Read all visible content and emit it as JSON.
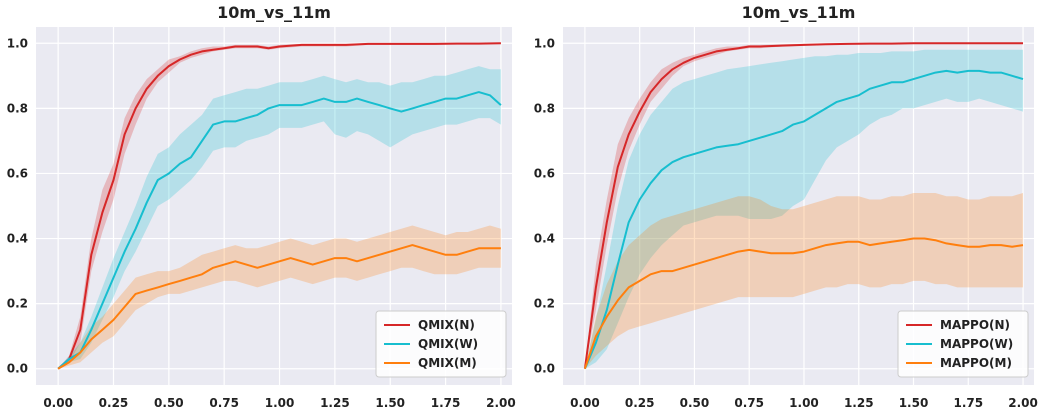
{
  "chart_data": [
    {
      "type": "line",
      "title": "10m_vs_11m",
      "xlabel": "",
      "ylabel": "",
      "xlim": [
        -0.1,
        2.05
      ],
      "ylim": [
        -0.05,
        1.05
      ],
      "xticks": [
        "0.00",
        "0.25",
        "0.50",
        "0.75",
        "1.00",
        "1.25",
        "1.50",
        "1.75",
        "2.00"
      ],
      "yticks": [
        "0.0",
        "0.2",
        "0.4",
        "0.6",
        "0.8",
        "1.0"
      ],
      "grid": true,
      "legend_position": "lower-right",
      "series": [
        {
          "name": "QMIX(N)",
          "color": "#d62728",
          "x": [
            0.0,
            0.05,
            0.1,
            0.15,
            0.2,
            0.25,
            0.3,
            0.35,
            0.4,
            0.45,
            0.5,
            0.55,
            0.6,
            0.65,
            0.7,
            0.75,
            0.8,
            0.85,
            0.9,
            0.95,
            1.0,
            1.1,
            1.2,
            1.3,
            1.4,
            1.5,
            1.6,
            1.7,
            1.8,
            1.9,
            2.0
          ],
          "values": [
            0.0,
            0.03,
            0.12,
            0.35,
            0.48,
            0.58,
            0.72,
            0.8,
            0.86,
            0.9,
            0.93,
            0.95,
            0.965,
            0.975,
            0.98,
            0.985,
            0.99,
            0.99,
            0.99,
            0.985,
            0.99,
            0.995,
            0.995,
            0.995,
            0.998,
            0.998,
            0.998,
            0.998,
            0.999,
            0.999,
            1.0
          ],
          "lower": [
            0.0,
            0.02,
            0.08,
            0.3,
            0.42,
            0.52,
            0.66,
            0.75,
            0.83,
            0.88,
            0.91,
            0.94,
            0.955,
            0.965,
            0.975,
            0.98,
            0.985,
            0.985,
            0.985,
            0.98,
            0.985,
            0.99,
            0.99,
            0.99,
            0.995,
            0.995,
            0.995,
            0.995,
            0.997,
            0.997,
            0.998
          ],
          "upper": [
            0.0,
            0.04,
            0.16,
            0.4,
            0.55,
            0.63,
            0.77,
            0.84,
            0.89,
            0.92,
            0.95,
            0.96,
            0.975,
            0.985,
            0.99,
            0.99,
            0.995,
            0.995,
            0.995,
            0.99,
            0.995,
            0.998,
            0.998,
            0.998,
            1.0,
            1.0,
            1.0,
            1.0,
            1.0,
            1.0,
            1.0
          ]
        },
        {
          "name": "QMIX(W)",
          "color": "#17becf",
          "x": [
            0.0,
            0.05,
            0.1,
            0.15,
            0.2,
            0.25,
            0.3,
            0.35,
            0.4,
            0.45,
            0.5,
            0.55,
            0.6,
            0.65,
            0.7,
            0.75,
            0.8,
            0.85,
            0.9,
            0.95,
            1.0,
            1.05,
            1.1,
            1.15,
            1.2,
            1.25,
            1.3,
            1.35,
            1.4,
            1.45,
            1.5,
            1.55,
            1.6,
            1.65,
            1.7,
            1.75,
            1.8,
            1.85,
            1.9,
            1.95,
            2.0
          ],
          "values": [
            0.0,
            0.03,
            0.05,
            0.12,
            0.2,
            0.28,
            0.36,
            0.43,
            0.51,
            0.58,
            0.6,
            0.63,
            0.65,
            0.7,
            0.75,
            0.76,
            0.76,
            0.77,
            0.78,
            0.8,
            0.81,
            0.81,
            0.81,
            0.82,
            0.83,
            0.82,
            0.82,
            0.83,
            0.82,
            0.81,
            0.8,
            0.79,
            0.8,
            0.81,
            0.82,
            0.83,
            0.83,
            0.84,
            0.85,
            0.84,
            0.81
          ],
          "lower": [
            0.0,
            0.02,
            0.03,
            0.08,
            0.15,
            0.22,
            0.3,
            0.36,
            0.43,
            0.5,
            0.52,
            0.55,
            0.58,
            0.62,
            0.67,
            0.68,
            0.68,
            0.7,
            0.71,
            0.72,
            0.74,
            0.74,
            0.74,
            0.75,
            0.76,
            0.72,
            0.71,
            0.73,
            0.72,
            0.7,
            0.68,
            0.7,
            0.72,
            0.73,
            0.74,
            0.75,
            0.75,
            0.76,
            0.77,
            0.77,
            0.75
          ],
          "upper": [
            0.0,
            0.04,
            0.08,
            0.16,
            0.25,
            0.34,
            0.42,
            0.5,
            0.59,
            0.66,
            0.68,
            0.72,
            0.75,
            0.78,
            0.83,
            0.84,
            0.85,
            0.86,
            0.86,
            0.87,
            0.88,
            0.88,
            0.88,
            0.89,
            0.9,
            0.89,
            0.88,
            0.89,
            0.88,
            0.88,
            0.87,
            0.88,
            0.88,
            0.89,
            0.9,
            0.9,
            0.91,
            0.92,
            0.93,
            0.92,
            0.92
          ]
        },
        {
          "name": "QMIX(M)",
          "color": "#ff7f0e",
          "x": [
            0.0,
            0.05,
            0.1,
            0.15,
            0.2,
            0.25,
            0.3,
            0.35,
            0.4,
            0.45,
            0.5,
            0.55,
            0.6,
            0.65,
            0.7,
            0.75,
            0.8,
            0.85,
            0.9,
            0.95,
            1.0,
            1.05,
            1.1,
            1.15,
            1.2,
            1.25,
            1.3,
            1.35,
            1.4,
            1.45,
            1.5,
            1.55,
            1.6,
            1.65,
            1.7,
            1.75,
            1.8,
            1.85,
            1.9,
            1.95,
            2.0
          ],
          "values": [
            0.0,
            0.02,
            0.05,
            0.09,
            0.12,
            0.15,
            0.19,
            0.23,
            0.24,
            0.25,
            0.26,
            0.27,
            0.28,
            0.29,
            0.31,
            0.32,
            0.33,
            0.32,
            0.31,
            0.32,
            0.33,
            0.34,
            0.33,
            0.32,
            0.33,
            0.34,
            0.34,
            0.33,
            0.34,
            0.35,
            0.36,
            0.37,
            0.38,
            0.37,
            0.36,
            0.35,
            0.35,
            0.36,
            0.37,
            0.37,
            0.37
          ],
          "lower": [
            0.0,
            0.01,
            0.02,
            0.05,
            0.08,
            0.1,
            0.14,
            0.18,
            0.2,
            0.22,
            0.23,
            0.23,
            0.24,
            0.25,
            0.26,
            0.27,
            0.27,
            0.26,
            0.25,
            0.26,
            0.27,
            0.28,
            0.27,
            0.26,
            0.27,
            0.28,
            0.28,
            0.27,
            0.28,
            0.29,
            0.3,
            0.31,
            0.31,
            0.3,
            0.29,
            0.29,
            0.29,
            0.3,
            0.31,
            0.31,
            0.31
          ],
          "upper": [
            0.0,
            0.03,
            0.08,
            0.13,
            0.16,
            0.2,
            0.24,
            0.28,
            0.29,
            0.3,
            0.3,
            0.31,
            0.33,
            0.35,
            0.36,
            0.37,
            0.38,
            0.37,
            0.37,
            0.38,
            0.39,
            0.4,
            0.39,
            0.38,
            0.39,
            0.4,
            0.4,
            0.39,
            0.4,
            0.41,
            0.42,
            0.43,
            0.44,
            0.43,
            0.42,
            0.41,
            0.42,
            0.42,
            0.43,
            0.44,
            0.43
          ]
        }
      ]
    },
    {
      "type": "line",
      "title": "10m_vs_11m",
      "xlabel": "",
      "ylabel": "",
      "xlim": [
        -0.1,
        2.05
      ],
      "ylim": [
        -0.05,
        1.05
      ],
      "xticks": [
        "0.00",
        "0.25",
        "0.50",
        "0.75",
        "1.00",
        "1.25",
        "1.50",
        "1.75",
        "2.00"
      ],
      "yticks": [
        "0.0",
        "0.2",
        "0.4",
        "0.6",
        "0.8",
        "1.0"
      ],
      "grid": true,
      "legend_position": "lower-right",
      "series": [
        {
          "name": "MAPPO(N)",
          "color": "#d62728",
          "x": [
            0.0,
            0.05,
            0.1,
            0.15,
            0.2,
            0.25,
            0.3,
            0.35,
            0.4,
            0.45,
            0.5,
            0.55,
            0.6,
            0.65,
            0.7,
            0.75,
            0.8,
            0.9,
            1.0,
            1.1,
            1.2,
            1.3,
            1.4,
            1.5,
            1.6,
            1.7,
            1.8,
            1.9,
            2.0
          ],
          "values": [
            0.0,
            0.25,
            0.45,
            0.62,
            0.72,
            0.79,
            0.85,
            0.89,
            0.92,
            0.94,
            0.955,
            0.965,
            0.975,
            0.98,
            0.985,
            0.99,
            0.99,
            0.993,
            0.995,
            0.997,
            0.998,
            0.999,
            0.999,
            1.0,
            1.0,
            1.0,
            1.0,
            1.0,
            1.0
          ],
          "lower": [
            0.0,
            0.18,
            0.38,
            0.55,
            0.67,
            0.75,
            0.82,
            0.86,
            0.9,
            0.93,
            0.945,
            0.955,
            0.965,
            0.975,
            0.98,
            0.985,
            0.985,
            0.99,
            0.993,
            0.995,
            0.997,
            0.998,
            0.998,
            0.999,
            0.999,
            0.999,
            0.999,
            0.999,
            0.999
          ],
          "upper": [
            0.0,
            0.32,
            0.52,
            0.69,
            0.77,
            0.83,
            0.88,
            0.92,
            0.94,
            0.955,
            0.965,
            0.975,
            0.985,
            0.99,
            0.99,
            0.995,
            0.995,
            0.997,
            0.998,
            0.999,
            1.0,
            1.0,
            1.0,
            1.0,
            1.0,
            1.0,
            1.0,
            1.0,
            1.0
          ]
        },
        {
          "name": "MAPPO(W)",
          "color": "#17becf",
          "x": [
            0.0,
            0.05,
            0.1,
            0.15,
            0.2,
            0.25,
            0.3,
            0.35,
            0.4,
            0.45,
            0.5,
            0.55,
            0.6,
            0.65,
            0.7,
            0.75,
            0.8,
            0.85,
            0.9,
            0.95,
            1.0,
            1.05,
            1.1,
            1.15,
            1.2,
            1.25,
            1.3,
            1.35,
            1.4,
            1.45,
            1.5,
            1.55,
            1.6,
            1.65,
            1.7,
            1.75,
            1.8,
            1.85,
            1.9,
            1.95,
            2.0
          ],
          "values": [
            0.0,
            0.08,
            0.18,
            0.32,
            0.45,
            0.52,
            0.57,
            0.61,
            0.635,
            0.65,
            0.66,
            0.67,
            0.68,
            0.685,
            0.69,
            0.7,
            0.71,
            0.72,
            0.73,
            0.75,
            0.76,
            0.78,
            0.8,
            0.82,
            0.83,
            0.84,
            0.86,
            0.87,
            0.88,
            0.88,
            0.89,
            0.9,
            0.91,
            0.915,
            0.91,
            0.915,
            0.915,
            0.91,
            0.91,
            0.9,
            0.89
          ],
          "lower": [
            0.0,
            0.02,
            0.06,
            0.14,
            0.22,
            0.29,
            0.34,
            0.38,
            0.41,
            0.44,
            0.45,
            0.46,
            0.47,
            0.47,
            0.47,
            0.46,
            0.46,
            0.46,
            0.47,
            0.5,
            0.52,
            0.58,
            0.64,
            0.68,
            0.7,
            0.72,
            0.75,
            0.77,
            0.78,
            0.8,
            0.8,
            0.81,
            0.82,
            0.83,
            0.82,
            0.82,
            0.83,
            0.82,
            0.81,
            0.8,
            0.79
          ],
          "upper": [
            0.0,
            0.15,
            0.32,
            0.5,
            0.64,
            0.72,
            0.78,
            0.82,
            0.86,
            0.88,
            0.89,
            0.9,
            0.91,
            0.92,
            0.925,
            0.93,
            0.935,
            0.94,
            0.945,
            0.95,
            0.955,
            0.96,
            0.96,
            0.965,
            0.965,
            0.97,
            0.97,
            0.97,
            0.975,
            0.975,
            0.975,
            0.98,
            0.98,
            0.98,
            0.98,
            0.98,
            0.98,
            0.98,
            0.98,
            0.98,
            0.98
          ]
        },
        {
          "name": "MAPPO(M)",
          "color": "#ff7f0e",
          "x": [
            0.0,
            0.05,
            0.1,
            0.15,
            0.2,
            0.25,
            0.3,
            0.35,
            0.4,
            0.45,
            0.5,
            0.55,
            0.6,
            0.65,
            0.7,
            0.75,
            0.8,
            0.85,
            0.9,
            0.95,
            1.0,
            1.05,
            1.1,
            1.15,
            1.2,
            1.25,
            1.3,
            1.35,
            1.4,
            1.45,
            1.5,
            1.55,
            1.6,
            1.65,
            1.7,
            1.75,
            1.8,
            1.85,
            1.9,
            1.95,
            2.0
          ],
          "values": [
            0.0,
            0.1,
            0.16,
            0.21,
            0.25,
            0.27,
            0.29,
            0.3,
            0.3,
            0.31,
            0.32,
            0.33,
            0.34,
            0.35,
            0.36,
            0.365,
            0.36,
            0.355,
            0.355,
            0.355,
            0.36,
            0.37,
            0.38,
            0.385,
            0.39,
            0.39,
            0.38,
            0.385,
            0.39,
            0.395,
            0.4,
            0.4,
            0.395,
            0.385,
            0.38,
            0.375,
            0.375,
            0.38,
            0.38,
            0.375,
            0.38
          ],
          "lower": [
            0.0,
            0.04,
            0.07,
            0.1,
            0.12,
            0.13,
            0.14,
            0.15,
            0.16,
            0.17,
            0.18,
            0.19,
            0.2,
            0.21,
            0.22,
            0.22,
            0.22,
            0.22,
            0.22,
            0.22,
            0.23,
            0.24,
            0.25,
            0.25,
            0.26,
            0.26,
            0.25,
            0.25,
            0.26,
            0.26,
            0.27,
            0.27,
            0.26,
            0.26,
            0.25,
            0.25,
            0.25,
            0.25,
            0.25,
            0.25,
            0.25
          ],
          "upper": [
            0.0,
            0.16,
            0.26,
            0.33,
            0.38,
            0.41,
            0.44,
            0.46,
            0.47,
            0.48,
            0.49,
            0.5,
            0.51,
            0.52,
            0.53,
            0.53,
            0.52,
            0.5,
            0.49,
            0.49,
            0.5,
            0.51,
            0.52,
            0.53,
            0.53,
            0.53,
            0.52,
            0.52,
            0.53,
            0.53,
            0.54,
            0.54,
            0.54,
            0.53,
            0.53,
            0.52,
            0.52,
            0.53,
            0.53,
            0.53,
            0.54
          ]
        }
      ]
    }
  ]
}
